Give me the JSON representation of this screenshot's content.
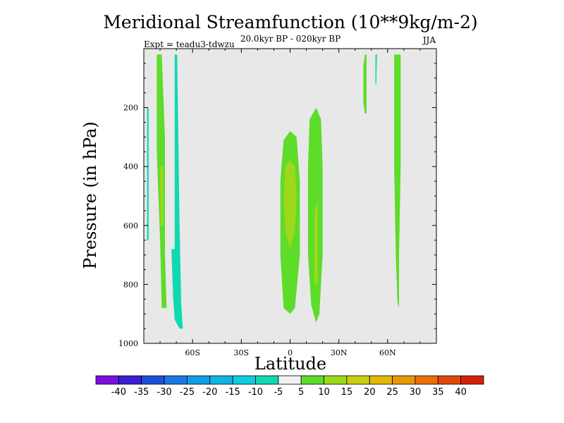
{
  "chart_data": {
    "type": "filled-contour",
    "title": "Meridional Streamfunction (10**9kg/m-2)",
    "subtitle": "20.0kyr BP - 020kyr BP",
    "left_label": "Expt = teadu3-tdwzu",
    "right_label": "JJA",
    "xlabel": "Latitude",
    "ylabel": "Pressure (in hPa)",
    "xlim": [
      -90,
      90
    ],
    "ylim": [
      1000,
      0
    ],
    "x_ticks": [
      {
        "value": -60,
        "label": "60S"
      },
      {
        "value": -30,
        "label": "30S"
      },
      {
        "value": 0,
        "label": "0"
      },
      {
        "value": 30,
        "label": "30N"
      },
      {
        "value": 60,
        "label": "60N"
      }
    ],
    "y_ticks": [
      {
        "value": 200,
        "label": "200"
      },
      {
        "value": 400,
        "label": "400"
      },
      {
        "value": 600,
        "label": "600"
      },
      {
        "value": 800,
        "label": "800"
      },
      {
        "value": 1000,
        "label": "1000"
      }
    ],
    "background_color": "#e8e8e8",
    "colorbar": {
      "levels": [
        "-40",
        "-35",
        "-30",
        "-25",
        "-20",
        "-15",
        "-10",
        "-5",
        "5",
        "10",
        "15",
        "20",
        "25",
        "30",
        "35",
        "40"
      ],
      "colors": [
        "#7a10e0",
        "#3a1fd8",
        "#1e4fd8",
        "#1e78e0",
        "#109ee8",
        "#10b4e0",
        "#10cce0",
        "#10d8b0",
        "#f0f0f0",
        "#5ddc2a",
        "#9ed81a",
        "#c8d010",
        "#e0b808",
        "#e89808",
        "#e87008",
        "#e04808",
        "#d82008"
      ]
    },
    "regions": [
      {
        "name": "region-band-65s-upper",
        "level": "5 to 10",
        "color": "#5ddc2a",
        "outline": [
          [
            -82,
            20
          ],
          [
            -79,
            20
          ],
          [
            -77,
            300
          ],
          [
            -77,
            700
          ],
          [
            -76,
            880
          ],
          [
            -79,
            880
          ],
          [
            -80,
            650
          ],
          [
            -82,
            350
          ]
        ]
      },
      {
        "name": "region-band-65s-core",
        "level": "10 to 15",
        "color": "#9ed81a",
        "outline": [
          [
            -80,
            400
          ],
          [
            -78,
            400
          ],
          [
            -78,
            600
          ],
          [
            -79.5,
            600
          ]
        ]
      },
      {
        "name": "region-band-60s-negative",
        "level": "-10 to -5",
        "color": "#10d8b0",
        "outline": [
          [
            -71,
            20
          ],
          [
            -69.5,
            20
          ],
          [
            -68,
            600
          ],
          [
            -67,
            860
          ],
          [
            -66,
            950
          ],
          [
            -68,
            950
          ],
          [
            -71,
            920
          ],
          [
            -72,
            840
          ],
          [
            -73,
            680
          ],
          [
            -71,
            680
          ],
          [
            -71,
            300
          ]
        ]
      },
      {
        "name": "region-band-88s-negative",
        "level": "-10 to -5",
        "color": "#10d8b0",
        "outline": [
          [
            -88,
            200
          ],
          [
            -87,
            200
          ],
          [
            -87,
            650
          ],
          [
            -88,
            650
          ]
        ]
      },
      {
        "name": "region-equator",
        "level": "5 to 10",
        "color": "#5ddc2a",
        "outline": [
          [
            -4,
            310
          ],
          [
            0,
            280
          ],
          [
            4,
            300
          ],
          [
            6,
            450
          ],
          [
            6,
            700
          ],
          [
            3,
            880
          ],
          [
            0,
            900
          ],
          [
            -4,
            880
          ],
          [
            -6,
            700
          ],
          [
            -6,
            450
          ]
        ]
      },
      {
        "name": "region-equator-core",
        "level": "10 to 15",
        "color": "#9ed81a",
        "outline": [
          [
            -3,
            400
          ],
          [
            0,
            380
          ],
          [
            3,
            400
          ],
          [
            4,
            500
          ],
          [
            3,
            620
          ],
          [
            0,
            680
          ],
          [
            -3,
            620
          ],
          [
            -4,
            500
          ]
        ]
      },
      {
        "name": "region-band-15n",
        "level": "5 to 10",
        "color": "#5ddc2a",
        "outline": [
          [
            12,
            240
          ],
          [
            16,
            200
          ],
          [
            19,
            240
          ],
          [
            20,
            400
          ],
          [
            20,
            700
          ],
          [
            18,
            900
          ],
          [
            16,
            930
          ],
          [
            13,
            870
          ],
          [
            11,
            700
          ],
          [
            11,
            400
          ]
        ]
      },
      {
        "name": "region-band-15n-core",
        "level": "10 to 15",
        "color": "#9ed81a",
        "outline": [
          [
            15,
            550
          ],
          [
            17,
            520
          ],
          [
            17,
            800
          ],
          [
            15,
            800
          ]
        ]
      },
      {
        "name": "region-band-45n",
        "level": "5 to 10",
        "color": "#5ddc2a",
        "outline": [
          [
            46,
            20
          ],
          [
            47,
            20
          ],
          [
            47,
            170
          ],
          [
            47,
            220
          ],
          [
            46,
            220
          ],
          [
            45,
            180
          ],
          [
            45,
            60
          ]
        ]
      },
      {
        "name": "region-band-51n-negative",
        "level": "-10 to -5",
        "color": "#10d8b0",
        "outline": [
          [
            52.5,
            20
          ],
          [
            53.5,
            20
          ],
          [
            53,
            120
          ],
          [
            52.5,
            120
          ]
        ]
      },
      {
        "name": "region-band-67n",
        "level": "5 to 10",
        "color": "#5ddc2a",
        "outline": [
          [
            64,
            20
          ],
          [
            68,
            20
          ],
          [
            68,
            400
          ],
          [
            67,
            700
          ],
          [
            67,
            880
          ],
          [
            66,
            860
          ],
          [
            65,
            700
          ],
          [
            64,
            400
          ]
        ]
      }
    ]
  }
}
